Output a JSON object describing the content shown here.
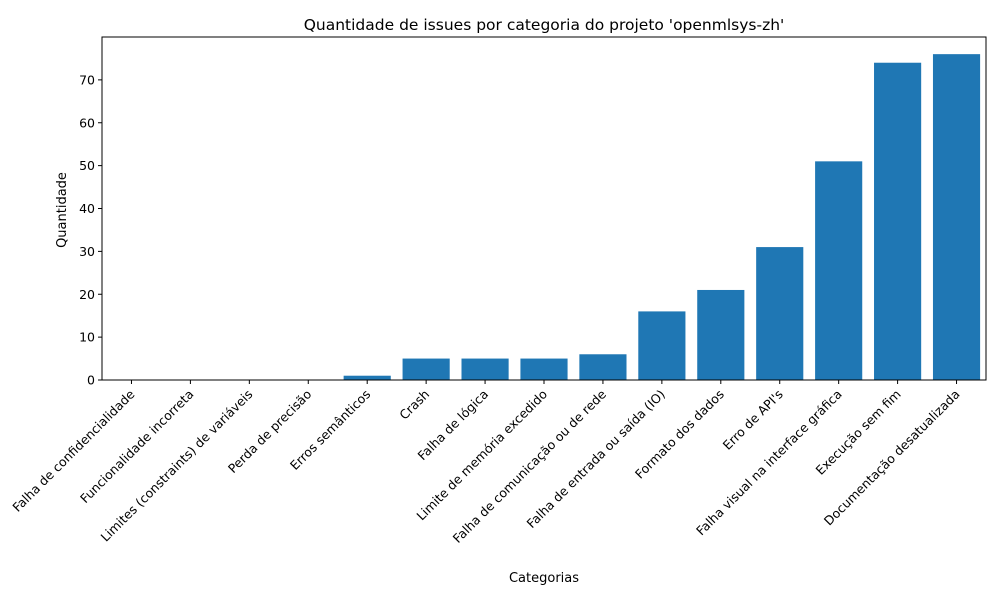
{
  "chart_data": {
    "type": "bar",
    "title": "Quantidade de issues por categoria do projeto 'openmlsys-zh'",
    "xlabel": "Categorias",
    "ylabel": "Quantidade",
    "ylim": [
      0,
      80
    ],
    "yticks": [
      0,
      10,
      20,
      30,
      40,
      50,
      60,
      70
    ],
    "grid": false,
    "bar_color": "#1f77b4",
    "categories": [
      "Falha de confidencialidade",
      "Funcionalidade incorreta",
      "Limites (constraints) de variáveis",
      "Perda de precisão",
      "Erros semânticos",
      "Crash",
      "Falha de lógica",
      "Limite de memória excedido",
      "Falha de comunicação ou de rede",
      "Falha de entrada ou saída (IO)",
      "Formato dos dados",
      "Erro de API's",
      "Falha visual na interface gráfica",
      "Execução sem fim",
      "Documentação desatualizada"
    ],
    "values": [
      0,
      0,
      0,
      0,
      1,
      5,
      5,
      5,
      6,
      16,
      21,
      31,
      51,
      74,
      76
    ]
  }
}
